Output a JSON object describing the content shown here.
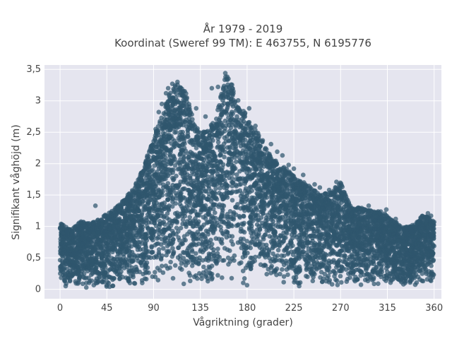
{
  "chart_data": {
    "type": "scatter",
    "title": "År 1979 - 2019",
    "subtitle": "Koordinat (Sweref 99 TM): E 463755, N 6195776",
    "xlabel": "Vågriktning (grader)",
    "ylabel": "Signifikant våghöjd (m)",
    "xlim": [
      -15,
      367
    ],
    "ylim": [
      -0.15,
      3.57
    ],
    "x_ticks": [
      0,
      45,
      90,
      135,
      180,
      225,
      270,
      315,
      360
    ],
    "x_tick_labels": [
      "0",
      "45",
      "90",
      "135",
      "180",
      "225",
      "270",
      "315",
      "360"
    ],
    "y_ticks": [
      0,
      0.5,
      1,
      1.5,
      2,
      2.5,
      3,
      3.5
    ],
    "y_tick_labels": [
      "0",
      "0,5",
      "1",
      "1,5",
      "2",
      "2,5",
      "3",
      "3,5"
    ],
    "grid": true,
    "point_color": "#2f566e",
    "background_color": "#e5e5ef",
    "envelope": {
      "direction": [
        0,
        10,
        20,
        30,
        40,
        50,
        60,
        70,
        80,
        90,
        100,
        110,
        120,
        130,
        140,
        150,
        160,
        170,
        180,
        190,
        200,
        210,
        220,
        230,
        240,
        250,
        260,
        270,
        280,
        290,
        300,
        310,
        320,
        330,
        340,
        350,
        360
      ],
      "min_height": [
        0.05,
        0.04,
        0.03,
        0.02,
        0.02,
        0.03,
        0.04,
        0.05,
        0.06,
        0.07,
        0.08,
        0.09,
        0.08,
        0.08,
        0.07,
        0.07,
        0.06,
        0.06,
        0.06,
        0.06,
        0.06,
        0.05,
        0.05,
        0.05,
        0.05,
        0.05,
        0.05,
        0.05,
        0.05,
        0.05,
        0.06,
        0.06,
        0.06,
        0.06,
        0.06,
        0.07,
        0.08
      ],
      "max_height": [
        1.05,
        0.95,
        1.08,
        1.05,
        1.15,
        1.25,
        1.4,
        1.6,
        1.95,
        2.4,
        2.9,
        3.3,
        3.2,
        2.6,
        2.5,
        2.75,
        3.45,
        3.1,
        2.75,
        2.5,
        2.2,
        2.0,
        1.9,
        1.75,
        1.65,
        1.5,
        1.55,
        1.7,
        1.3,
        1.3,
        1.25,
        1.25,
        1.1,
        1.0,
        1.0,
        1.2,
        1.1
      ]
    },
    "outliers": [
      {
        "x": 1,
        "y": 1.04
      },
      {
        "x": 34,
        "y": 1.33
      },
      {
        "x": 47,
        "y": 1.17
      },
      {
        "x": 57,
        "y": 1.3
      },
      {
        "x": 65,
        "y": 1.42
      },
      {
        "x": 70,
        "y": 1.56
      },
      {
        "x": 75,
        "y": 1.66
      },
      {
        "x": 80,
        "y": 1.85
      },
      {
        "x": 85,
        "y": 2.02
      },
      {
        "x": 89,
        "y": 2.3
      },
      {
        "x": 92,
        "y": 2.55
      },
      {
        "x": 95,
        "y": 2.82
      },
      {
        "x": 98,
        "y": 2.95
      },
      {
        "x": 102,
        "y": 3.12
      },
      {
        "x": 104,
        "y": 3.2
      },
      {
        "x": 108,
        "y": 3.27
      },
      {
        "x": 111,
        "y": 3.22
      },
      {
        "x": 113,
        "y": 3.3
      },
      {
        "x": 116,
        "y": 3.21
      },
      {
        "x": 119,
        "y": 3.15
      },
      {
        "x": 122,
        "y": 3.05
      },
      {
        "x": 131,
        "y": 2.88
      },
      {
        "x": 140,
        "y": 2.75
      },
      {
        "x": 146,
        "y": 3.2
      },
      {
        "x": 152,
        "y": 3.22
      },
      {
        "x": 157,
        "y": 3.1
      },
      {
        "x": 159,
        "y": 3.44
      },
      {
        "x": 162,
        "y": 3.35
      },
      {
        "x": 165,
        "y": 3.16
      },
      {
        "x": 168,
        "y": 2.97
      },
      {
        "x": 173,
        "y": 2.85
      },
      {
        "x": 178,
        "y": 2.75
      },
      {
        "x": 182,
        "y": 2.88
      },
      {
        "x": 188,
        "y": 2.6
      },
      {
        "x": 195,
        "y": 2.37
      },
      {
        "x": 203,
        "y": 2.31
      },
      {
        "x": 209,
        "y": 2.19
      },
      {
        "x": 214,
        "y": 2.13
      },
      {
        "x": 220,
        "y": 1.98
      },
      {
        "x": 225,
        "y": 1.92
      },
      {
        "x": 234,
        "y": 1.82
      },
      {
        "x": 245,
        "y": 1.67
      },
      {
        "x": 250,
        "y": 1.62
      },
      {
        "x": 259,
        "y": 1.58
      },
      {
        "x": 266,
        "y": 1.71
      },
      {
        "x": 271,
        "y": 1.52
      },
      {
        "x": 278,
        "y": 1.3
      },
      {
        "x": 286,
        "y": 1.28
      },
      {
        "x": 297,
        "y": 1.33
      },
      {
        "x": 308,
        "y": 1.2
      },
      {
        "x": 314,
        "y": 1.27
      },
      {
        "x": 323,
        "y": 1.12
      },
      {
        "x": 339,
        "y": 1.02
      },
      {
        "x": 347,
        "y": 1.14
      },
      {
        "x": 354,
        "y": 1.21
      },
      {
        "x": 357,
        "y": 1.17
      },
      {
        "x": 360,
        "y": 1.07
      }
    ]
  }
}
